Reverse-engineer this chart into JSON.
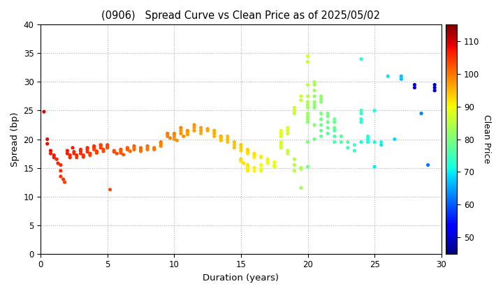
{
  "title": "(0906)   Spread Curve vs Clean Price as of 2025/05/02",
  "xlabel": "Duration (years)",
  "ylabel": "Spread (bp)",
  "xlim": [
    0,
    30
  ],
  "ylim": [
    0,
    40
  ],
  "xticks": [
    0,
    5,
    10,
    15,
    20,
    25,
    30
  ],
  "yticks": [
    0,
    5,
    10,
    15,
    20,
    25,
    30,
    35,
    40
  ],
  "colorbar_label": "Clean Price",
  "colorbar_ticks": [
    50,
    60,
    70,
    80,
    90,
    100,
    110
  ],
  "cmap_vmin": 45,
  "cmap_vmax": 115,
  "scatter_data": [
    {
      "dur": 0.25,
      "spread": 24.8,
      "price": 109
    },
    {
      "dur": 0.5,
      "spread": 20.0,
      "price": 108
    },
    {
      "dur": 0.5,
      "spread": 19.2,
      "price": 108
    },
    {
      "dur": 0.75,
      "spread": 18.0,
      "price": 108
    },
    {
      "dur": 0.75,
      "spread": 17.5,
      "price": 107
    },
    {
      "dur": 1.0,
      "spread": 17.2,
      "price": 107
    },
    {
      "dur": 1.0,
      "spread": 16.8,
      "price": 107
    },
    {
      "dur": 1.2,
      "spread": 16.5,
      "price": 106
    },
    {
      "dur": 1.3,
      "spread": 15.8,
      "price": 106
    },
    {
      "dur": 1.5,
      "spread": 15.5,
      "price": 106
    },
    {
      "dur": 1.5,
      "spread": 14.5,
      "price": 105
    },
    {
      "dur": 1.5,
      "spread": 13.5,
      "price": 105
    },
    {
      "dur": 1.7,
      "spread": 13.0,
      "price": 105
    },
    {
      "dur": 1.8,
      "spread": 12.5,
      "price": 104
    },
    {
      "dur": 2.0,
      "spread": 18.0,
      "price": 107
    },
    {
      "dur": 2.0,
      "spread": 17.5,
      "price": 107
    },
    {
      "dur": 2.2,
      "spread": 17.2,
      "price": 106
    },
    {
      "dur": 2.2,
      "spread": 16.8,
      "price": 106
    },
    {
      "dur": 2.4,
      "spread": 18.5,
      "price": 107
    },
    {
      "dur": 2.5,
      "spread": 17.8,
      "price": 106
    },
    {
      "dur": 2.5,
      "spread": 17.5,
      "price": 106
    },
    {
      "dur": 2.7,
      "spread": 17.2,
      "price": 106
    },
    {
      "dur": 2.7,
      "spread": 16.8,
      "price": 105
    },
    {
      "dur": 3.0,
      "spread": 18.2,
      "price": 106
    },
    {
      "dur": 3.0,
      "spread": 17.9,
      "price": 106
    },
    {
      "dur": 3.0,
      "spread": 17.5,
      "price": 105
    },
    {
      "dur": 3.2,
      "spread": 17.2,
      "price": 105
    },
    {
      "dur": 3.2,
      "spread": 16.9,
      "price": 105
    },
    {
      "dur": 3.5,
      "spread": 18.5,
      "price": 106
    },
    {
      "dur": 3.5,
      "spread": 18.2,
      "price": 105
    },
    {
      "dur": 3.5,
      "spread": 17.8,
      "price": 105
    },
    {
      "dur": 3.7,
      "spread": 17.5,
      "price": 105
    },
    {
      "dur": 3.7,
      "spread": 17.2,
      "price": 104
    },
    {
      "dur": 4.0,
      "spread": 18.8,
      "price": 105
    },
    {
      "dur": 4.0,
      "spread": 18.5,
      "price": 105
    },
    {
      "dur": 4.0,
      "spread": 18.2,
      "price": 104
    },
    {
      "dur": 4.2,
      "spread": 17.9,
      "price": 104
    },
    {
      "dur": 4.2,
      "spread": 17.6,
      "price": 104
    },
    {
      "dur": 4.5,
      "spread": 19.0,
      "price": 105
    },
    {
      "dur": 4.5,
      "spread": 18.8,
      "price": 104
    },
    {
      "dur": 4.5,
      "spread": 18.5,
      "price": 104
    },
    {
      "dur": 4.7,
      "spread": 18.2,
      "price": 104
    },
    {
      "dur": 4.7,
      "spread": 17.9,
      "price": 103
    },
    {
      "dur": 5.0,
      "spread": 19.0,
      "price": 104
    },
    {
      "dur": 5.0,
      "spread": 18.7,
      "price": 104
    },
    {
      "dur": 5.0,
      "spread": 18.5,
      "price": 103
    },
    {
      "dur": 5.2,
      "spread": 11.2,
      "price": 103
    },
    {
      "dur": 5.5,
      "spread": 18.0,
      "price": 103
    },
    {
      "dur": 5.5,
      "spread": 17.8,
      "price": 103
    },
    {
      "dur": 5.7,
      "spread": 17.5,
      "price": 103
    },
    {
      "dur": 6.0,
      "spread": 18.2,
      "price": 103
    },
    {
      "dur": 6.0,
      "spread": 17.9,
      "price": 102
    },
    {
      "dur": 6.0,
      "spread": 17.6,
      "price": 102
    },
    {
      "dur": 6.2,
      "spread": 17.3,
      "price": 102
    },
    {
      "dur": 6.5,
      "spread": 18.5,
      "price": 102
    },
    {
      "dur": 6.5,
      "spread": 18.2,
      "price": 102
    },
    {
      "dur": 6.7,
      "spread": 17.9,
      "price": 101
    },
    {
      "dur": 7.0,
      "spread": 18.8,
      "price": 102
    },
    {
      "dur": 7.0,
      "spread": 18.5,
      "price": 101
    },
    {
      "dur": 7.0,
      "spread": 18.2,
      "price": 101
    },
    {
      "dur": 7.5,
      "spread": 18.5,
      "price": 101
    },
    {
      "dur": 7.5,
      "spread": 18.2,
      "price": 101
    },
    {
      "dur": 7.5,
      "spread": 17.9,
      "price": 100
    },
    {
      "dur": 8.0,
      "spread": 18.8,
      "price": 101
    },
    {
      "dur": 8.0,
      "spread": 18.5,
      "price": 100
    },
    {
      "dur": 8.0,
      "spread": 18.2,
      "price": 100
    },
    {
      "dur": 8.5,
      "spread": 18.5,
      "price": 100
    },
    {
      "dur": 8.5,
      "spread": 18.2,
      "price": 100
    },
    {
      "dur": 9.0,
      "spread": 19.5,
      "price": 100
    },
    {
      "dur": 9.0,
      "spread": 19.2,
      "price": 99
    },
    {
      "dur": 9.0,
      "spread": 18.8,
      "price": 99
    },
    {
      "dur": 9.5,
      "spread": 21.0,
      "price": 100
    },
    {
      "dur": 9.5,
      "spread": 20.8,
      "price": 99
    },
    {
      "dur": 9.5,
      "spread": 20.5,
      "price": 99
    },
    {
      "dur": 9.7,
      "spread": 20.2,
      "price": 99
    },
    {
      "dur": 10.0,
      "spread": 21.0,
      "price": 99
    },
    {
      "dur": 10.0,
      "spread": 20.8,
      "price": 99
    },
    {
      "dur": 10.0,
      "spread": 20.5,
      "price": 98
    },
    {
      "dur": 10.0,
      "spread": 20.0,
      "price": 98
    },
    {
      "dur": 10.2,
      "spread": 19.8,
      "price": 98
    },
    {
      "dur": 10.5,
      "spread": 22.0,
      "price": 99
    },
    {
      "dur": 10.5,
      "spread": 21.5,
      "price": 98
    },
    {
      "dur": 10.5,
      "spread": 21.0,
      "price": 98
    },
    {
      "dur": 10.7,
      "spread": 20.5,
      "price": 98
    },
    {
      "dur": 11.0,
      "spread": 21.5,
      "price": 98
    },
    {
      "dur": 11.0,
      "spread": 21.2,
      "price": 97
    },
    {
      "dur": 11.0,
      "spread": 20.8,
      "price": 97
    },
    {
      "dur": 11.5,
      "spread": 22.5,
      "price": 98
    },
    {
      "dur": 11.5,
      "spread": 22.0,
      "price": 97
    },
    {
      "dur": 11.5,
      "spread": 21.5,
      "price": 97
    },
    {
      "dur": 12.0,
      "spread": 22.0,
      "price": 97
    },
    {
      "dur": 12.0,
      "spread": 21.5,
      "price": 97
    },
    {
      "dur": 12.0,
      "spread": 21.0,
      "price": 96
    },
    {
      "dur": 12.5,
      "spread": 21.8,
      "price": 97
    },
    {
      "dur": 12.5,
      "spread": 21.5,
      "price": 96
    },
    {
      "dur": 13.0,
      "spread": 21.5,
      "price": 96
    },
    {
      "dur": 13.0,
      "spread": 21.0,
      "price": 96
    },
    {
      "dur": 13.0,
      "spread": 20.5,
      "price": 95
    },
    {
      "dur": 13.5,
      "spread": 20.5,
      "price": 96
    },
    {
      "dur": 13.5,
      "spread": 20.2,
      "price": 95
    },
    {
      "dur": 13.5,
      "spread": 19.8,
      "price": 95
    },
    {
      "dur": 14.0,
      "spread": 20.5,
      "price": 95
    },
    {
      "dur": 14.0,
      "spread": 20.0,
      "price": 95
    },
    {
      "dur": 14.0,
      "spread": 19.5,
      "price": 94
    },
    {
      "dur": 14.5,
      "spread": 19.5,
      "price": 95
    },
    {
      "dur": 14.5,
      "spread": 19.0,
      "price": 94
    },
    {
      "dur": 14.5,
      "spread": 18.5,
      "price": 94
    },
    {
      "dur": 15.0,
      "spread": 19.0,
      "price": 94
    },
    {
      "dur": 15.0,
      "spread": 18.5,
      "price": 93
    },
    {
      "dur": 15.0,
      "spread": 18.0,
      "price": 93
    },
    {
      "dur": 15.0,
      "spread": 16.5,
      "price": 93
    },
    {
      "dur": 15.0,
      "spread": 16.2,
      "price": 92
    },
    {
      "dur": 15.2,
      "spread": 15.8,
      "price": 92
    },
    {
      "dur": 15.5,
      "spread": 18.2,
      "price": 93
    },
    {
      "dur": 15.5,
      "spread": 17.8,
      "price": 93
    },
    {
      "dur": 15.5,
      "spread": 17.5,
      "price": 92
    },
    {
      "dur": 15.5,
      "spread": 15.5,
      "price": 92
    },
    {
      "dur": 15.5,
      "spread": 15.2,
      "price": 91
    },
    {
      "dur": 15.5,
      "spread": 14.8,
      "price": 91
    },
    {
      "dur": 15.5,
      "spread": 14.5,
      "price": 91
    },
    {
      "dur": 16.0,
      "spread": 17.5,
      "price": 92
    },
    {
      "dur": 16.0,
      "spread": 17.2,
      "price": 92
    },
    {
      "dur": 16.0,
      "spread": 16.8,
      "price": 91
    },
    {
      "dur": 16.0,
      "spread": 15.0,
      "price": 91
    },
    {
      "dur": 16.0,
      "spread": 14.5,
      "price": 90
    },
    {
      "dur": 16.5,
      "spread": 17.0,
      "price": 91
    },
    {
      "dur": 16.5,
      "spread": 16.8,
      "price": 91
    },
    {
      "dur": 16.5,
      "spread": 15.5,
      "price": 90
    },
    {
      "dur": 16.5,
      "spread": 14.8,
      "price": 90
    },
    {
      "dur": 16.5,
      "spread": 14.5,
      "price": 89
    },
    {
      "dur": 17.0,
      "spread": 16.5,
      "price": 91
    },
    {
      "dur": 17.0,
      "spread": 16.2,
      "price": 90
    },
    {
      "dur": 17.0,
      "spread": 15.8,
      "price": 90
    },
    {
      "dur": 17.5,
      "spread": 16.0,
      "price": 90
    },
    {
      "dur": 17.5,
      "spread": 15.5,
      "price": 89
    },
    {
      "dur": 17.5,
      "spread": 15.2,
      "price": 89
    },
    {
      "dur": 18.0,
      "spread": 21.5,
      "price": 89
    },
    {
      "dur": 18.0,
      "spread": 21.0,
      "price": 88
    },
    {
      "dur": 18.0,
      "spread": 20.5,
      "price": 88
    },
    {
      "dur": 18.0,
      "spread": 19.5,
      "price": 88
    },
    {
      "dur": 18.0,
      "spread": 19.0,
      "price": 87
    },
    {
      "dur": 18.0,
      "spread": 18.5,
      "price": 87
    },
    {
      "dur": 18.5,
      "spread": 22.0,
      "price": 88
    },
    {
      "dur": 18.5,
      "spread": 21.5,
      "price": 88
    },
    {
      "dur": 18.5,
      "spread": 21.0,
      "price": 87
    },
    {
      "dur": 18.5,
      "spread": 18.0,
      "price": 86
    },
    {
      "dur": 18.5,
      "spread": 17.5,
      "price": 86
    },
    {
      "dur": 19.0,
      "spread": 25.5,
      "price": 87
    },
    {
      "dur": 19.0,
      "spread": 25.0,
      "price": 87
    },
    {
      "dur": 19.0,
      "spread": 24.5,
      "price": 86
    },
    {
      "dur": 19.0,
      "spread": 16.5,
      "price": 85
    },
    {
      "dur": 19.0,
      "spread": 15.5,
      "price": 85
    },
    {
      "dur": 19.0,
      "spread": 14.5,
      "price": 85
    },
    {
      "dur": 19.5,
      "spread": 27.5,
      "price": 87
    },
    {
      "dur": 19.5,
      "spread": 26.8,
      "price": 86
    },
    {
      "dur": 19.5,
      "spread": 15.0,
      "price": 84
    },
    {
      "dur": 19.5,
      "spread": 14.8,
      "price": 84
    },
    {
      "dur": 19.5,
      "spread": 11.5,
      "price": 83
    },
    {
      "dur": 20.0,
      "spread": 34.5,
      "price": 87
    },
    {
      "dur": 20.0,
      "spread": 33.5,
      "price": 86
    },
    {
      "dur": 20.0,
      "spread": 29.5,
      "price": 85
    },
    {
      "dur": 20.0,
      "spread": 27.5,
      "price": 85
    },
    {
      "dur": 20.0,
      "spread": 26.5,
      "price": 84
    },
    {
      "dur": 20.0,
      "spread": 26.0,
      "price": 84
    },
    {
      "dur": 20.0,
      "spread": 25.5,
      "price": 83
    },
    {
      "dur": 20.0,
      "spread": 24.5,
      "price": 83
    },
    {
      "dur": 20.0,
      "spread": 24.0,
      "price": 82
    },
    {
      "dur": 20.0,
      "spread": 23.5,
      "price": 82
    },
    {
      "dur": 20.0,
      "spread": 23.0,
      "price": 81
    },
    {
      "dur": 20.0,
      "spread": 19.5,
      "price": 80
    },
    {
      "dur": 20.0,
      "spread": 15.2,
      "price": 79
    },
    {
      "dur": 20.5,
      "spread": 30.0,
      "price": 84
    },
    {
      "dur": 20.5,
      "spread": 29.5,
      "price": 83
    },
    {
      "dur": 20.5,
      "spread": 28.5,
      "price": 83
    },
    {
      "dur": 20.5,
      "spread": 27.5,
      "price": 82
    },
    {
      "dur": 20.5,
      "spread": 26.5,
      "price": 82
    },
    {
      "dur": 20.5,
      "spread": 26.0,
      "price": 81
    },
    {
      "dur": 20.5,
      "spread": 25.5,
      "price": 81
    },
    {
      "dur": 20.5,
      "spread": 22.5,
      "price": 80
    },
    {
      "dur": 20.5,
      "spread": 20.0,
      "price": 79
    },
    {
      "dur": 21.0,
      "spread": 27.5,
      "price": 82
    },
    {
      "dur": 21.0,
      "spread": 27.0,
      "price": 81
    },
    {
      "dur": 21.0,
      "spread": 26.5,
      "price": 81
    },
    {
      "dur": 21.0,
      "spread": 24.5,
      "price": 80
    },
    {
      "dur": 21.0,
      "spread": 23.5,
      "price": 79
    },
    {
      "dur": 21.0,
      "spread": 22.5,
      "price": 79
    },
    {
      "dur": 21.0,
      "spread": 21.5,
      "price": 78
    },
    {
      "dur": 21.0,
      "spread": 20.5,
      "price": 78
    },
    {
      "dur": 21.5,
      "spread": 24.5,
      "price": 80
    },
    {
      "dur": 21.5,
      "spread": 24.0,
      "price": 79
    },
    {
      "dur": 21.5,
      "spread": 23.0,
      "price": 79
    },
    {
      "dur": 21.5,
      "spread": 22.0,
      "price": 78
    },
    {
      "dur": 21.5,
      "spread": 21.0,
      "price": 77
    },
    {
      "dur": 22.0,
      "spread": 23.5,
      "price": 79
    },
    {
      "dur": 22.0,
      "spread": 23.0,
      "price": 78
    },
    {
      "dur": 22.0,
      "spread": 22.0,
      "price": 78
    },
    {
      "dur": 22.0,
      "spread": 21.5,
      "price": 77
    },
    {
      "dur": 22.0,
      "spread": 20.5,
      "price": 76
    },
    {
      "dur": 22.0,
      "spread": 19.5,
      "price": 76
    },
    {
      "dur": 22.5,
      "spread": 20.5,
      "price": 77
    },
    {
      "dur": 22.5,
      "spread": 19.5,
      "price": 76
    },
    {
      "dur": 23.0,
      "spread": 19.5,
      "price": 76
    },
    {
      "dur": 23.0,
      "spread": 18.5,
      "price": 75
    },
    {
      "dur": 23.5,
      "spread": 19.0,
      "price": 75
    },
    {
      "dur": 23.5,
      "spread": 18.0,
      "price": 74
    },
    {
      "dur": 24.0,
      "spread": 34.0,
      "price": 73
    },
    {
      "dur": 24.0,
      "spread": 25.0,
      "price": 74
    },
    {
      "dur": 24.0,
      "spread": 24.5,
      "price": 74
    },
    {
      "dur": 24.0,
      "spread": 23.5,
      "price": 73
    },
    {
      "dur": 24.0,
      "spread": 23.0,
      "price": 73
    },
    {
      "dur": 24.0,
      "spread": 19.5,
      "price": 72
    },
    {
      "dur": 24.5,
      "spread": 20.5,
      "price": 73
    },
    {
      "dur": 24.5,
      "spread": 20.0,
      "price": 72
    },
    {
      "dur": 24.5,
      "spread": 19.5,
      "price": 72
    },
    {
      "dur": 25.0,
      "spread": 25.0,
      "price": 72
    },
    {
      "dur": 25.0,
      "spread": 19.5,
      "price": 71
    },
    {
      "dur": 25.0,
      "spread": 15.2,
      "price": 70
    },
    {
      "dur": 25.5,
      "spread": 19.5,
      "price": 71
    },
    {
      "dur": 25.5,
      "spread": 19.0,
      "price": 70
    },
    {
      "dur": 26.0,
      "spread": 31.0,
      "price": 70
    },
    {
      "dur": 26.5,
      "spread": 20.0,
      "price": 69
    },
    {
      "dur": 27.0,
      "spread": 31.0,
      "price": 67
    },
    {
      "dur": 27.0,
      "spread": 30.5,
      "price": 67
    },
    {
      "dur": 28.0,
      "spread": 29.5,
      "price": 52
    },
    {
      "dur": 28.0,
      "spread": 29.0,
      "price": 52
    },
    {
      "dur": 28.5,
      "spread": 24.5,
      "price": 63
    },
    {
      "dur": 29.0,
      "spread": 15.5,
      "price": 62
    },
    {
      "dur": 29.5,
      "spread": 29.5,
      "price": 50
    },
    {
      "dur": 29.5,
      "spread": 29.0,
      "price": 50
    },
    {
      "dur": 29.5,
      "spread": 28.5,
      "price": 50
    }
  ]
}
